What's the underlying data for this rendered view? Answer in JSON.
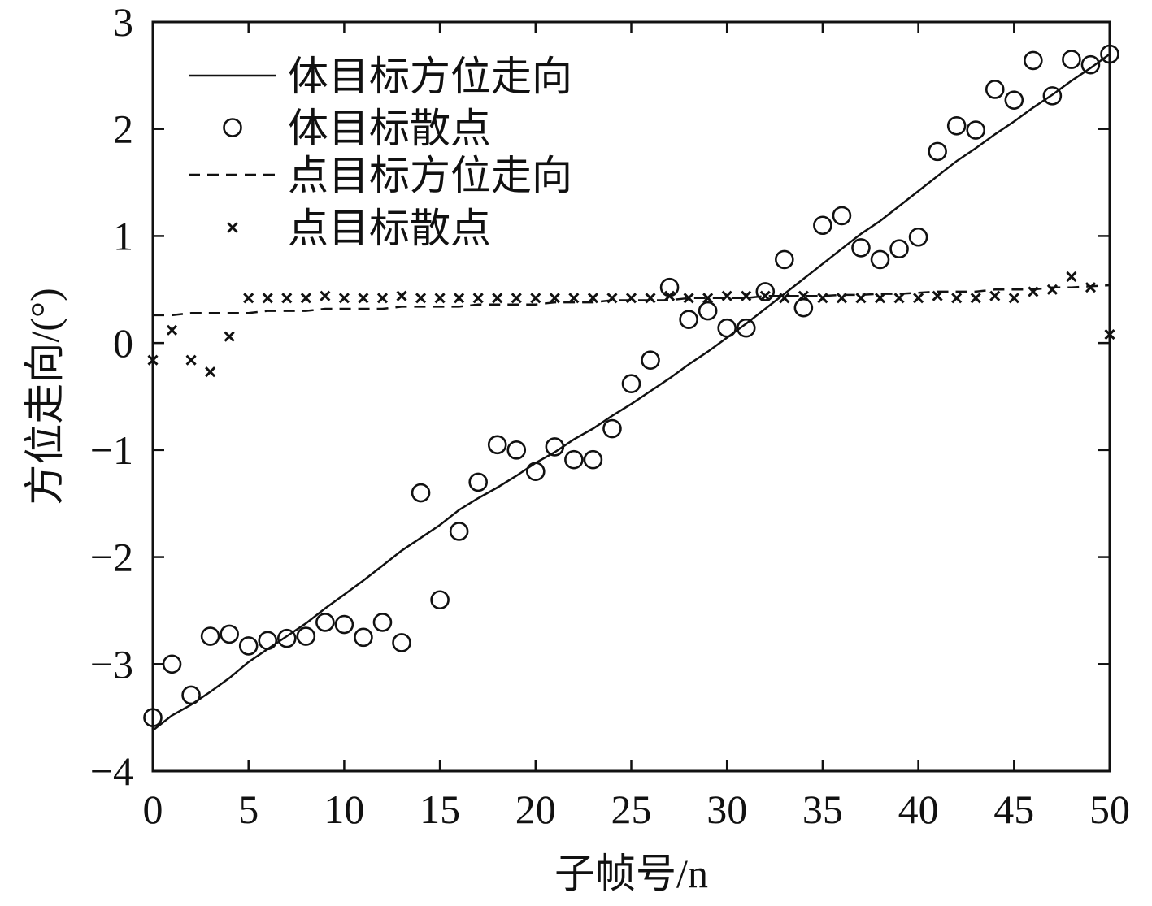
{
  "chart_data": {
    "type": "scatter",
    "xlabel": "子帧号/n",
    "ylabel": "方位走向/(°)",
    "xlim": [
      0,
      50
    ],
    "ylim": [
      -4,
      3
    ],
    "x_ticks": [
      0,
      5,
      10,
      15,
      20,
      25,
      30,
      35,
      40,
      45,
      50
    ],
    "y_ticks": [
      -4,
      -3,
      -2,
      -1,
      0,
      1,
      2,
      3
    ],
    "grid": false,
    "legend_position": "top-left",
    "series": [
      {
        "name": "体目标方位走向",
        "style": "solid-line",
        "x": [
          0,
          1,
          2,
          3,
          4,
          5,
          6,
          7,
          8,
          9,
          10,
          11,
          12,
          13,
          14,
          15,
          16,
          17,
          18,
          19,
          20,
          21,
          22,
          23,
          24,
          25,
          26,
          27,
          28,
          29,
          30,
          31,
          32,
          33,
          34,
          35,
          36,
          37,
          38,
          39,
          40,
          41,
          42,
          43,
          44,
          45,
          46,
          47,
          48,
          49,
          50
        ],
        "y": [
          -3.62,
          -3.48,
          -3.38,
          -3.26,
          -3.13,
          -2.98,
          -2.86,
          -2.74,
          -2.62,
          -2.48,
          -2.35,
          -2.22,
          -2.08,
          -1.94,
          -1.82,
          -1.7,
          -1.56,
          -1.45,
          -1.35,
          -1.24,
          -1.12,
          -1.02,
          -0.9,
          -0.8,
          -0.68,
          -0.57,
          -0.45,
          -0.33,
          -0.2,
          -0.08,
          0.05,
          0.18,
          0.32,
          0.46,
          0.6,
          0.74,
          0.88,
          1.02,
          1.14,
          1.28,
          1.42,
          1.56,
          1.7,
          1.82,
          1.95,
          2.07,
          2.2,
          2.32,
          2.45,
          2.57,
          2.7
        ]
      },
      {
        "name": "体目标散点",
        "style": "circle",
        "x": [
          0,
          1,
          2,
          3,
          4,
          5,
          6,
          7,
          8,
          9,
          10,
          11,
          12,
          13,
          14,
          15,
          16,
          17,
          18,
          19,
          20,
          21,
          22,
          23,
          24,
          25,
          26,
          27,
          28,
          29,
          30,
          31,
          32,
          33,
          34,
          35,
          36,
          37,
          38,
          39,
          40,
          41,
          42,
          43,
          44,
          45,
          46,
          47,
          48,
          49,
          50
        ],
        "y": [
          -3.5,
          -3.0,
          -3.29,
          -2.74,
          -2.72,
          -2.83,
          -2.78,
          -2.76,
          -2.74,
          -2.61,
          -2.63,
          -2.75,
          -2.61,
          -2.8,
          -1.4,
          -2.4,
          -1.76,
          -1.3,
          -0.95,
          -1.0,
          -1.2,
          -0.97,
          -1.09,
          -1.09,
          -0.8,
          -0.38,
          -0.16,
          0.52,
          0.22,
          0.3,
          0.14,
          0.14,
          0.48,
          0.78,
          0.33,
          1.1,
          1.19,
          0.89,
          0.78,
          0.88,
          0.99,
          1.79,
          2.03,
          1.99,
          2.37,
          2.27,
          2.64,
          2.31,
          2.65,
          2.6,
          2.7
        ]
      },
      {
        "name": "点目标方位走向",
        "style": "dashed-line",
        "x": [
          0,
          1,
          2,
          3,
          4,
          5,
          6,
          7,
          8,
          9,
          10,
          11,
          12,
          13,
          14,
          15,
          16,
          17,
          18,
          19,
          20,
          21,
          22,
          23,
          24,
          25,
          26,
          27,
          28,
          29,
          30,
          31,
          32,
          33,
          34,
          35,
          36,
          37,
          38,
          39,
          40,
          41,
          42,
          43,
          44,
          45,
          46,
          47,
          48,
          49,
          50
        ],
        "y": [
          0.26,
          0.26,
          0.28,
          0.28,
          0.28,
          0.28,
          0.3,
          0.3,
          0.3,
          0.32,
          0.32,
          0.32,
          0.32,
          0.34,
          0.34,
          0.34,
          0.34,
          0.36,
          0.36,
          0.36,
          0.36,
          0.38,
          0.38,
          0.38,
          0.4,
          0.4,
          0.4,
          0.4,
          0.42,
          0.42,
          0.42,
          0.42,
          0.44,
          0.44,
          0.44,
          0.44,
          0.45,
          0.45,
          0.46,
          0.46,
          0.47,
          0.48,
          0.48,
          0.48,
          0.5,
          0.5,
          0.5,
          0.52,
          0.52,
          0.53,
          0.54
        ]
      },
      {
        "name": "点目标散点",
        "style": "x-marker",
        "x": [
          0,
          1,
          2,
          3,
          4,
          5,
          6,
          7,
          8,
          9,
          10,
          11,
          12,
          13,
          14,
          15,
          16,
          17,
          18,
          19,
          20,
          21,
          22,
          23,
          24,
          25,
          26,
          27,
          28,
          29,
          30,
          31,
          32,
          33,
          34,
          35,
          36,
          37,
          38,
          39,
          40,
          41,
          42,
          43,
          44,
          45,
          46,
          47,
          48,
          49,
          50
        ],
        "y": [
          -0.16,
          0.12,
          -0.16,
          -0.27,
          0.06,
          0.42,
          0.42,
          0.42,
          0.42,
          0.44,
          0.42,
          0.42,
          0.42,
          0.44,
          0.42,
          0.42,
          0.42,
          0.42,
          0.42,
          0.42,
          0.42,
          0.42,
          0.42,
          0.42,
          0.42,
          0.42,
          0.42,
          0.44,
          0.42,
          0.42,
          0.44,
          0.44,
          0.44,
          0.42,
          0.44,
          0.42,
          0.42,
          0.42,
          0.42,
          0.42,
          0.42,
          0.44,
          0.42,
          0.42,
          0.44,
          0.42,
          0.48,
          0.5,
          0.62,
          0.52,
          0.08
        ]
      }
    ]
  }
}
